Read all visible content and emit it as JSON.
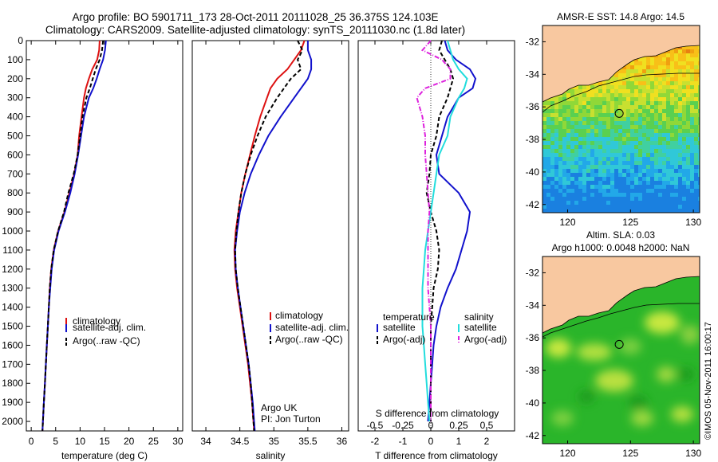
{
  "header": {
    "line1": "Argo profile: BO 5901711_173 28-Oct-2011 20111028_25 36.375S 124.103E",
    "line2": "Climatology: CARS2009. Satellite-adjusted climatology: synTS_20111030.nc (1.8d later)"
  },
  "footer": {
    "argo_group": "Argo UK",
    "pi": "PI: Jon Turton",
    "copyright": "©IMOS 05-Nov-2011 16:00:17"
  },
  "colors": {
    "red": "#dd1111",
    "blue": "#1111cc",
    "black": "#000000",
    "cyan": "#22dddd",
    "magenta": "#dd22dd",
    "land": "#f8c8a0"
  },
  "chart_data": [
    {
      "type": "line",
      "xlabel": "temperature (deg C)",
      "ylim": [
        0,
        2050
      ],
      "xlim": [
        -1,
        31
      ],
      "xticks": [
        0,
        5,
        10,
        15,
        20,
        25,
        30
      ],
      "yticks": [
        0,
        100,
        200,
        300,
        400,
        500,
        600,
        700,
        800,
        900,
        1000,
        1100,
        1200,
        1300,
        1400,
        1500,
        1600,
        1700,
        1800,
        1900,
        2000
      ],
      "y_reversed": true,
      "depth": [
        0,
        50,
        100,
        150,
        200,
        250,
        300,
        400,
        500,
        600,
        700,
        800,
        900,
        1000,
        1100,
        1200,
        1300,
        1400,
        1500,
        1600,
        1700,
        1800,
        1900,
        2000,
        2050
      ],
      "legend": [
        "climatology",
        "satellite-adj. clim.",
        "Argo(..raw -QC)"
      ],
      "series": [
        {
          "name": "climatology",
          "color": "red",
          "dash": "solid",
          "values": [
            14.0,
            13.9,
            13.5,
            12.5,
            11.8,
            11.2,
            10.8,
            10.3,
            9.8,
            9.5,
            8.8,
            7.8,
            6.8,
            5.5,
            4.6,
            4.1,
            3.8,
            3.6,
            3.4,
            3.2,
            3.0,
            2.8,
            2.6,
            2.4,
            2.3
          ]
        },
        {
          "name": "satellite-adj. clim.",
          "color": "blue",
          "dash": "solid",
          "values": [
            15.3,
            15.1,
            14.7,
            14.0,
            13.4,
            12.7,
            11.8,
            10.8,
            10.2,
            9.6,
            8.9,
            8.0,
            6.9,
            5.6,
            4.7,
            4.2,
            3.9,
            3.6,
            3.4,
            3.2,
            3.0,
            2.8,
            2.6,
            2.4,
            2.3
          ]
        },
        {
          "name": "Argo(..raw -QC)",
          "color": "black",
          "dash": "dash",
          "values": [
            14.7,
            14.5,
            14.0,
            13.2,
            12.6,
            12.0,
            11.3,
            10.5,
            10.0,
            9.5,
            8.7,
            7.6,
            6.7,
            5.5,
            4.6,
            4.1,
            3.8,
            3.6,
            3.4,
            3.2,
            3.0,
            2.8,
            2.6,
            2.4,
            2.3
          ]
        }
      ]
    },
    {
      "type": "line",
      "xlabel": "salinity",
      "ylim": [
        0,
        2050
      ],
      "xlim": [
        33.8,
        36.1
      ],
      "xticks": [
        34,
        34.5,
        35,
        35.5,
        36
      ],
      "y_reversed": true,
      "depth": [
        0,
        50,
        100,
        150,
        200,
        250,
        300,
        400,
        500,
        600,
        700,
        800,
        900,
        1000,
        1100,
        1200,
        1300,
        1400,
        1500,
        1600,
        1700,
        1800,
        1900,
        2000,
        2050
      ],
      "legend": [
        "climatology",
        "satellite-adj. clim.",
        "Argo(..raw -QC)"
      ],
      "series": [
        {
          "name": "climatology",
          "color": "red",
          "dash": "solid",
          "values": [
            35.45,
            35.4,
            35.3,
            35.2,
            35.05,
            34.95,
            34.9,
            34.8,
            34.72,
            34.65,
            34.58,
            34.52,
            34.48,
            34.44,
            34.42,
            34.43,
            34.46,
            34.5,
            34.54,
            34.58,
            34.62,
            34.65,
            34.68,
            34.7,
            34.71
          ]
        },
        {
          "name": "satellite-adj. clim.",
          "color": "blue",
          "dash": "solid",
          "values": [
            35.5,
            35.5,
            35.55,
            35.55,
            35.5,
            35.4,
            35.3,
            35.1,
            34.92,
            34.78,
            34.66,
            34.57,
            34.5,
            34.46,
            34.43,
            34.44,
            34.47,
            34.51,
            34.55,
            34.59,
            34.63,
            34.66,
            34.69,
            34.71,
            34.72
          ]
        },
        {
          "name": "Argo(..raw -QC)",
          "color": "black",
          "dash": "dash",
          "values": [
            35.35,
            35.42,
            35.35,
            35.4,
            35.25,
            35.15,
            35.05,
            34.88,
            34.76,
            34.66,
            34.58,
            34.52,
            34.48,
            34.45,
            34.43,
            34.44,
            34.47,
            34.51,
            34.55,
            34.59,
            34.63,
            34.66,
            34.68,
            34.7,
            34.71
          ]
        }
      ]
    },
    {
      "type": "line",
      "xlabel_bottom": "T difference from climatology",
      "xlabel_top": "S difference from climatology",
      "ylim": [
        0,
        2050
      ],
      "xlim": [
        -2.6,
        3.0
      ],
      "xticks": [
        -2,
        -1,
        0,
        1,
        2
      ],
      "top_tick_labels": [
        "-0.5",
        "-0.25",
        "0",
        "0.25",
        "0.5"
      ],
      "y_reversed": true,
      "legend_titles": [
        "temperature",
        "salinity"
      ],
      "legend": [
        "satellite",
        "Argo(-adj)",
        "satellite",
        "Argo(-adj)"
      ],
      "depth": [
        0,
        50,
        100,
        150,
        200,
        250,
        300,
        400,
        500,
        600,
        700,
        800,
        900,
        1000,
        1100,
        1200,
        1300,
        1400,
        1500,
        1600,
        1700,
        1800,
        1900,
        2000
      ],
      "series": [
        {
          "name": "satellite",
          "color": "blue",
          "dash": "solid",
          "values": [
            0.5,
            0.6,
            0.9,
            1.4,
            1.6,
            1.5,
            1.0,
            0.6,
            0.4,
            0.2,
            0.3,
            1.0,
            1.4,
            1.3,
            1.1,
            0.9,
            0.6,
            0.35,
            0.2,
            0.1,
            0.05,
            0.0,
            -0.05,
            -0.1
          ]
        },
        {
          "name": "Argo(-adj)",
          "color": "black",
          "dash": "dash",
          "values": [
            0.4,
            0.3,
            0.5,
            0.7,
            0.8,
            0.7,
            0.6,
            0.3,
            0.2,
            0.0,
            -0.05,
            -0.15,
            0.0,
            0.2,
            0.3,
            0.25,
            0.1,
            0.05,
            0.0,
            0.0,
            0.0,
            0.0,
            0.0,
            0.0
          ]
        },
        {
          "name": "satellite",
          "color": "cyan",
          "dash": "solid",
          "values": [
            0.6,
            0.7,
            0.8,
            1.0,
            1.3,
            1.2,
            1.0,
            0.7,
            0.6,
            0.3,
            0.2,
            0.1,
            0.0,
            -0.1,
            -0.2,
            -0.25,
            -0.3,
            -0.3,
            -0.3,
            -0.25,
            -0.2,
            -0.15,
            -0.1,
            -0.05
          ]
        },
        {
          "name": "Argo(-adj)",
          "color": "magenta",
          "dash": "dashdot",
          "values": [
            0.0,
            -0.3,
            0.4,
            0.7,
            0.7,
            -0.2,
            -0.5,
            -0.3,
            -0.2,
            -0.2,
            -0.15,
            -0.1,
            -0.05,
            -0.1,
            -0.1,
            -0.1,
            -0.1,
            -0.05,
            0.0,
            0.0,
            0.0,
            0.0,
            0.0,
            0.0
          ]
        }
      ]
    },
    {
      "type": "heatmap",
      "title": "AMSR-E SST: 14.8 Argo: 14.5",
      "xlim": [
        118,
        130.5
      ],
      "ylim": [
        -42.5,
        -31
      ],
      "xticks": [
        120,
        125,
        130
      ],
      "yticks": [
        -32,
        -34,
        -36,
        -38,
        -40,
        -42
      ],
      "marker": {
        "lon": 124.1,
        "lat": -36.4
      }
    },
    {
      "type": "heatmap",
      "title": "Altim. SLA: 0.03",
      "subtitle": "Argo h1000: 0.0048 h2000: NaN",
      "xlim": [
        118,
        130.5
      ],
      "ylim": [
        -42.5,
        -31
      ],
      "xticks": [
        120,
        125,
        130
      ],
      "yticks": [
        -32,
        -34,
        -36,
        -38,
        -40,
        -42
      ],
      "marker": {
        "lon": 124.1,
        "lat": -36.4
      }
    }
  ]
}
